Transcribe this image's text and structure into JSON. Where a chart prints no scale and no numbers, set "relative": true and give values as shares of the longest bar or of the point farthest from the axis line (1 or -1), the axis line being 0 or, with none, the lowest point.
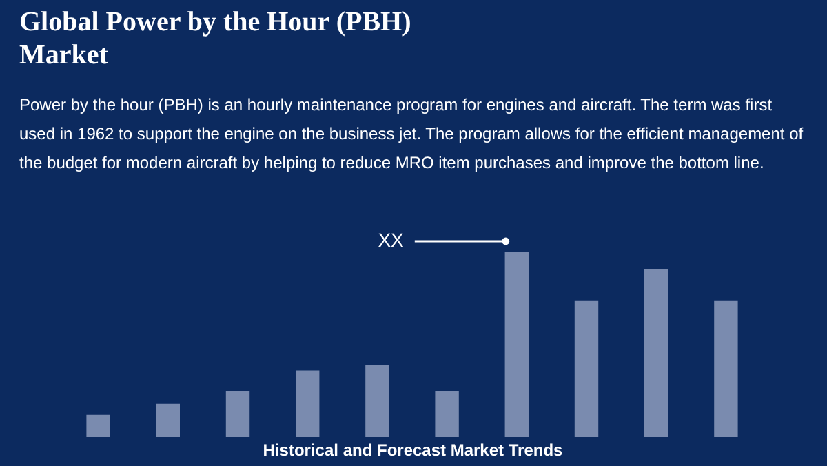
{
  "chart_data": {
    "type": "bar",
    "title": "Global Power by the Hour (PBH) Market",
    "subtitle": "Power by the hour (PBH) is an hourly maintenance program for engines and aircraft. The term was first used in 1962 to support the engine on the business jet. The program allows for the efficient management of the budget for modern aircraft by helping to reduce MRO item purchases and improve the bottom line.",
    "xlabel": "Historical and Forecast Market Trends",
    "categories": [
      null,
      null,
      null,
      null,
      null,
      null,
      null,
      null,
      null,
      null
    ],
    "values": [
      0.12,
      0.18,
      0.25,
      0.36,
      0.39,
      0.25,
      1,
      0.74,
      0.91,
      0.74
    ],
    "color": "#8e9cbd",
    "relative": true,
    "annotations": [
      "XX"
    ]
  }
}
